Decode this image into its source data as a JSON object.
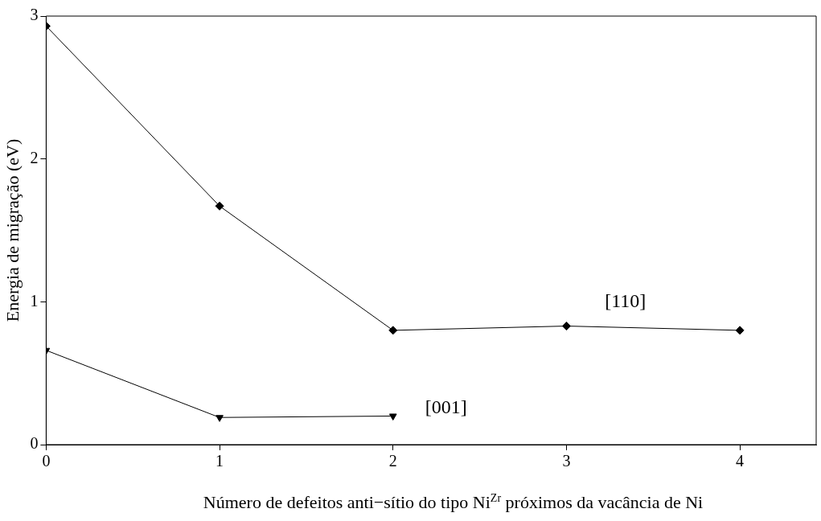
{
  "chart_data": {
    "type": "line",
    "xlabel": "Número de defeitos anti−sítio do tipo Ni$^{Zr}$ próximos da vacância de Ni",
    "ylabel": "Energia de migração (eV)",
    "xlim": [
      0,
      4.44
    ],
    "xticks": [
      0,
      1,
      2,
      3,
      4
    ],
    "ylim": [
      0,
      3
    ],
    "yticks": [
      0,
      1,
      2,
      3
    ],
    "grid": false,
    "legend": false,
    "line_style": "solid",
    "series": [
      {
        "name": "[110]",
        "color": "#000000",
        "marker": "diamond",
        "x": [
          0,
          1,
          2,
          3,
          4
        ],
        "values": [
          2.93,
          1.67,
          0.8,
          0.83,
          0.8
        ]
      },
      {
        "name": "[001]",
        "color": "#000000",
        "marker": "triangle",
        "x": [
          0,
          1,
          2
        ],
        "values": [
          0.66,
          0.19,
          0.2
        ]
      }
    ]
  }
}
